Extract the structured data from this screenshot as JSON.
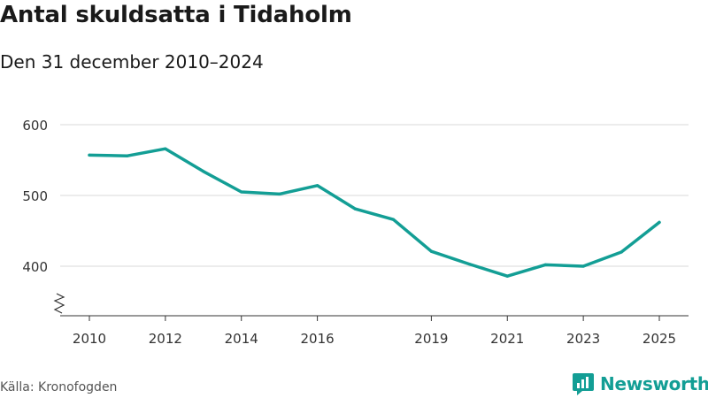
{
  "title": "Antal skuldsatta i Tidaholm",
  "subtitle": "Den 31 december 2010–2024",
  "source": "Källa: Kronofogden",
  "brand": {
    "name": "Newsworthy",
    "icon": "newsworthy-logo-icon"
  },
  "colors": {
    "line": "#139e95",
    "grid": "#d9d9d9",
    "axis": "#333333",
    "brand": "#139e95",
    "text": "#1a1a1a"
  },
  "chart_data": {
    "type": "line",
    "title": "Antal skuldsatta i Tidaholm",
    "subtitle": "Den 31 december 2010–2024",
    "xlabel": "",
    "ylabel": "",
    "xlim": [
      2010,
      2025
    ],
    "ylim": [
      340,
      610
    ],
    "grid": true,
    "axis_break": true,
    "yticks": [
      400,
      500,
      600
    ],
    "xticks": [
      2010,
      2012,
      2014,
      2016,
      2019,
      2021,
      2023,
      2025
    ],
    "series": [
      {
        "name": "Antal skuldsatta",
        "x": [
          2010,
          2011,
          2012,
          2013,
          2014,
          2015,
          2016,
          2017,
          2018,
          2019,
          2020,
          2021,
          2022,
          2023,
          2024,
          2025
        ],
        "y": [
          557,
          556,
          566,
          534,
          505,
          502,
          514,
          481,
          466,
          421,
          403,
          386,
          402,
          400,
          420,
          462
        ]
      }
    ]
  }
}
